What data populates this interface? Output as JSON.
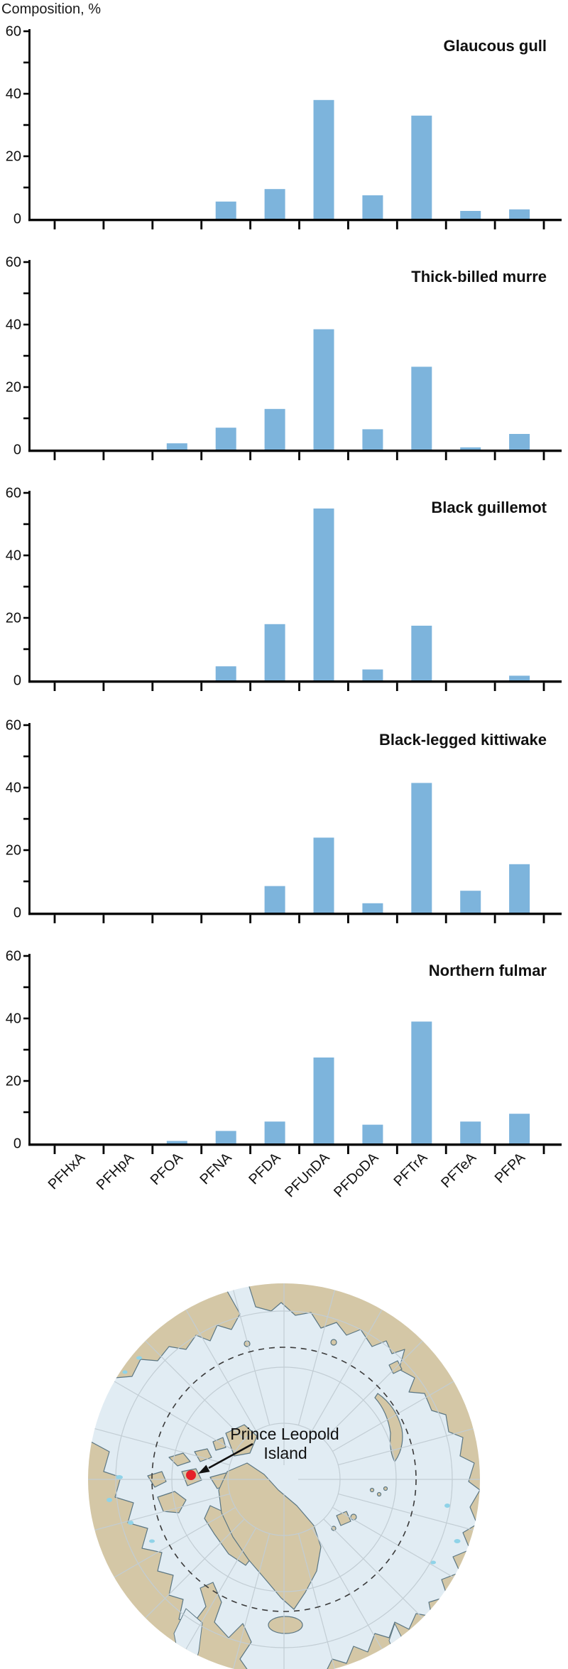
{
  "composition_label": "Composition, %",
  "colors": {
    "bar": "#7db4dc",
    "axis": "#000000",
    "land": "#d4c7a6",
    "ocean": "#e1ecf3",
    "coast": "#5b7683",
    "lake": "#8fd3e8",
    "marker": "#e62129"
  },
  "chart_data": [
    {
      "type": "bar",
      "title": "Glaucous gull",
      "categories": [
        "PFHxA",
        "PFHpA",
        "PFOA",
        "PFNA",
        "PFDA",
        "PFUnDA",
        "PFDoDA",
        "PFTrA",
        "PFTeA",
        "PFPA"
      ],
      "values": [
        0,
        0,
        0,
        5.5,
        9.5,
        38,
        7.5,
        33,
        2.5,
        3
      ],
      "ylabel": "Composition, %",
      "ylim": [
        0,
        60
      ],
      "yticks": [
        0,
        20,
        40,
        60
      ],
      "yticks_minor": [
        10,
        30,
        50
      ],
      "grid": false,
      "legend": "none"
    },
    {
      "type": "bar",
      "title": "Thick-billed murre",
      "categories": [
        "PFHxA",
        "PFHpA",
        "PFOA",
        "PFNA",
        "PFDA",
        "PFUnDA",
        "PFDoDA",
        "PFTrA",
        "PFTeA",
        "PFPA"
      ],
      "values": [
        0,
        0,
        2,
        7,
        13,
        38.5,
        6.5,
        26.5,
        0.7,
        5
      ],
      "ylabel": "Composition, %",
      "ylim": [
        0,
        60
      ],
      "yticks": [
        0,
        20,
        40,
        60
      ],
      "yticks_minor": [
        10,
        30,
        50
      ],
      "grid": false,
      "legend": "none"
    },
    {
      "type": "bar",
      "title": "Black guillemot",
      "categories": [
        "PFHxA",
        "PFHpA",
        "PFOA",
        "PFNA",
        "PFDA",
        "PFUnDA",
        "PFDoDA",
        "PFTrA",
        "PFTeA",
        "PFPA"
      ],
      "values": [
        0,
        0,
        0,
        4.5,
        18,
        55,
        3.5,
        17.5,
        0,
        1.5
      ],
      "ylabel": "Composition, %",
      "ylim": [
        0,
        60
      ],
      "yticks": [
        0,
        20,
        40,
        60
      ],
      "yticks_minor": [
        10,
        30,
        50
      ],
      "grid": false,
      "legend": "none"
    },
    {
      "type": "bar",
      "title": "Black-legged kittiwake",
      "categories": [
        "PFHxA",
        "PFHpA",
        "PFOA",
        "PFNA",
        "PFDA",
        "PFUnDA",
        "PFDoDA",
        "PFTrA",
        "PFTeA",
        "PFPA"
      ],
      "values": [
        0,
        0,
        0,
        0,
        8.5,
        24,
        3,
        41.5,
        7,
        15.5
      ],
      "ylabel": "Composition, %",
      "ylim": [
        0,
        60
      ],
      "yticks": [
        0,
        20,
        40,
        60
      ],
      "yticks_minor": [
        10,
        30,
        50
      ],
      "grid": false,
      "legend": "none"
    },
    {
      "type": "bar",
      "title": "Northern fulmar",
      "categories": [
        "PFHxA",
        "PFHpA",
        "PFOA",
        "PFNA",
        "PFDA",
        "PFUnDA",
        "PFDoDA",
        "PFTrA",
        "PFTeA",
        "PFPA"
      ],
      "values": [
        0,
        0,
        0.8,
        4,
        7,
        27.5,
        6,
        39,
        7,
        9.5
      ],
      "ylabel": "Composition, %",
      "ylim": [
        0,
        60
      ],
      "yticks": [
        0,
        20,
        40,
        60
      ],
      "yticks_minor": [
        10,
        30,
        50
      ],
      "grid": false,
      "legend": "none"
    }
  ],
  "map": {
    "label_line1": "Prince Leopold",
    "label_line2": "Island"
  }
}
